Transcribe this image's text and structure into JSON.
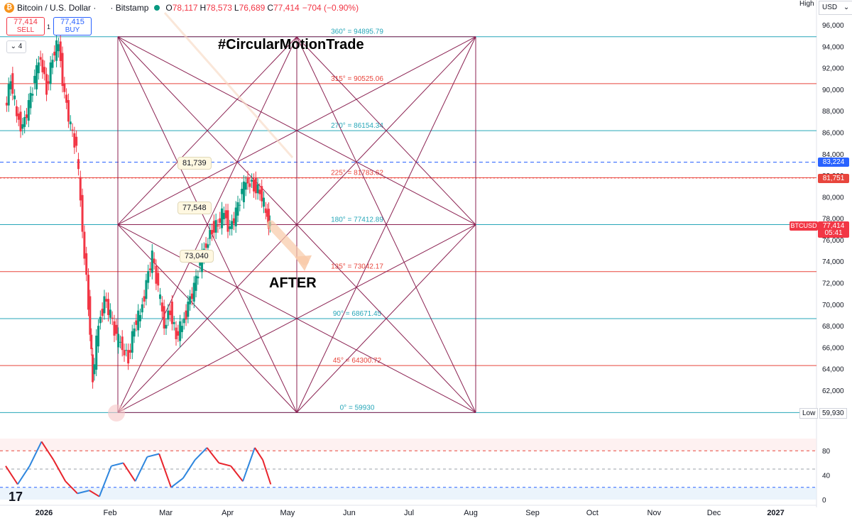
{
  "header": {
    "symbol": "Bitcoin / U.S. Dollar ·",
    "exchange": "· Bitstamp",
    "open_label": "O",
    "open": "78,117",
    "high_label": "H",
    "high": "78,573",
    "low_label": "L",
    "low": "76,689",
    "close_label": "C",
    "close": "77,414",
    "change": "−704 (−0.90%)"
  },
  "trade": {
    "sell_price": "77,414",
    "sell_label": "SELL",
    "buy_price": "77,415",
    "buy_label": "BUY",
    "spread": "1"
  },
  "indicator_toggle": "4",
  "axis": {
    "currency": "USD",
    "high_label": "High",
    "low_label": "Low",
    "low_value": "59,930",
    "price_badges": {
      "dashed_blue": "83,224",
      "red_line": "81,751",
      "current": "77,414",
      "countdown": "05:41"
    },
    "symbol_tag": "BTCUSD"
  },
  "colors": {
    "up": "#089981",
    "down": "#f23645",
    "square": "#8b2252",
    "teal_level": "#26a6b8",
    "red_level": "#e8453c",
    "blue_dash": "#2962ff",
    "stoch_k": "#2e86de",
    "stoch_d": "#f4a100",
    "stoch_down": "#e8242c"
  },
  "annotations": {
    "title": "#CircularMotionTrade",
    "after": "AFTER",
    "callout_81739": "81,739",
    "callout_77548": "77,548",
    "callout_73040": "73,040"
  },
  "logo": "17",
  "chart_data": {
    "type": "candlestick",
    "title": "Bitcoin / U.S. Dollar · Bitstamp",
    "ylim": [
      60000,
      96000
    ],
    "yticks": [
      62000,
      64000,
      66000,
      68000,
      70000,
      72000,
      74000,
      76000,
      78000,
      80000,
      82000,
      84000,
      86000,
      88000,
      90000,
      92000,
      94000,
      96000
    ],
    "xtick_labels": [
      "2026",
      "Feb",
      "Mar",
      "Apr",
      "May",
      "Jun",
      "Jul",
      "Aug",
      "Sep",
      "Oct",
      "Nov",
      "Dec",
      "2027"
    ],
    "levels": [
      {
        "label": "360° = 94895.79",
        "value": 94895.79,
        "color": "teal"
      },
      {
        "label": "315° = 90525.06",
        "value": 90525.06,
        "color": "red"
      },
      {
        "label": "270° = 86154.34",
        "value": 86154.34,
        "color": "teal"
      },
      {
        "label": "225° = 81783.62",
        "value": 81783.62,
        "color": "red"
      },
      {
        "label": "180° = 77412.89",
        "value": 77412.89,
        "color": "teal"
      },
      {
        "label": "135° = 73042.17",
        "value": 73042.17,
        "color": "red"
      },
      {
        "label": "90° = 68671.45",
        "value": 68671.45,
        "color": "teal"
      },
      {
        "label": "45° = 64300.72",
        "value": 64300.72,
        "color": "red"
      },
      {
        "label": "0° = 59930",
        "value": 59930,
        "color": "teal"
      }
    ],
    "close_path": [
      [
        "2026-01-01",
        88000
      ],
      [
        "2026-01-04",
        91000
      ],
      [
        "2026-01-07",
        87500
      ],
      [
        "2026-01-10",
        86500
      ],
      [
        "2026-01-13",
        88500
      ],
      [
        "2026-01-16",
        90500
      ],
      [
        "2026-01-19",
        93500
      ],
      [
        "2026-01-22",
        90000
      ],
      [
        "2026-01-25",
        93000
      ],
      [
        "2026-01-28",
        94200
      ],
      [
        "2026-01-31",
        89500
      ],
      [
        "2026-02-03",
        86500
      ],
      [
        "2026-02-06",
        84000
      ],
      [
        "2026-02-09",
        77500
      ],
      [
        "2026-02-12",
        70000
      ],
      [
        "2026-02-14",
        63000
      ],
      [
        "2026-02-17",
        68000
      ],
      [
        "2026-02-20",
        70500
      ],
      [
        "2026-02-23",
        69000
      ],
      [
        "2026-02-26",
        66500
      ],
      [
        "2026-03-01",
        66500
      ],
      [
        "2026-03-04",
        65000
      ],
      [
        "2026-03-07",
        68000
      ],
      [
        "2026-03-10",
        69000
      ],
      [
        "2026-03-13",
        72000
      ],
      [
        "2026-03-16",
        74500
      ],
      [
        "2026-03-19",
        71000
      ],
      [
        "2026-03-22",
        68500
      ],
      [
        "2026-03-25",
        69500
      ],
      [
        "2026-03-28",
        67000
      ],
      [
        "2026-03-31",
        68000
      ],
      [
        "2026-04-03",
        70000
      ],
      [
        "2026-04-06",
        71500
      ],
      [
        "2026-04-09",
        73500
      ],
      [
        "2026-04-12",
        76000
      ],
      [
        "2026-04-15",
        77000
      ],
      [
        "2026-04-18",
        77500
      ],
      [
        "2026-04-21",
        78500
      ],
      [
        "2026-04-24",
        77000
      ],
      [
        "2026-04-27",
        78500
      ],
      [
        "2026-04-30",
        80000
      ],
      [
        "2026-05-03",
        82000
      ],
      [
        "2026-05-06",
        81000
      ],
      [
        "2026-05-09",
        80500
      ],
      [
        "2026-05-12",
        78500
      ],
      [
        "2026-05-14",
        77414
      ]
    ],
    "projection_arrow": {
      "from": [
        "2026-05-14",
        77414
      ],
      "to": [
        "2026-05-31",
        73500
      ]
    },
    "stochastic": {
      "ylim": [
        0,
        100
      ],
      "yticks": [
        0,
        40,
        80
      ],
      "bands": [
        20,
        50,
        80
      ],
      "k": [
        [
          "2026-01-01",
          55
        ],
        [
          "2026-01-07",
          25
        ],
        [
          "2026-01-13",
          55
        ],
        [
          "2026-01-19",
          95
        ],
        [
          "2026-01-25",
          65
        ],
        [
          "2026-01-31",
          30
        ],
        [
          "2026-02-06",
          10
        ],
        [
          "2026-02-12",
          15
        ],
        [
          "2026-02-17",
          5
        ],
        [
          "2026-02-23",
          55
        ],
        [
          "2026-03-01",
          60
        ],
        [
          "2026-03-07",
          30
        ],
        [
          "2026-03-13",
          70
        ],
        [
          "2026-03-19",
          75
        ],
        [
          "2026-03-25",
          20
        ],
        [
          "2026-03-31",
          35
        ],
        [
          "2026-04-06",
          65
        ],
        [
          "2026-04-12",
          85
        ],
        [
          "2026-04-18",
          60
        ],
        [
          "2026-04-24",
          55
        ],
        [
          "2026-04-30",
          30
        ],
        [
          "2026-05-06",
          85
        ],
        [
          "2026-05-10",
          65
        ],
        [
          "2026-05-14",
          25
        ]
      ]
    }
  }
}
